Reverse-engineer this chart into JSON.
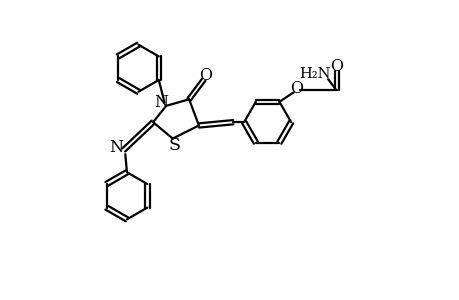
{
  "bg": "#ffffff",
  "lc": "#000000",
  "lw": 1.6,
  "fs": 10.5,
  "xlim": [
    0,
    10.0
  ],
  "ylim": [
    0,
    9.0
  ]
}
